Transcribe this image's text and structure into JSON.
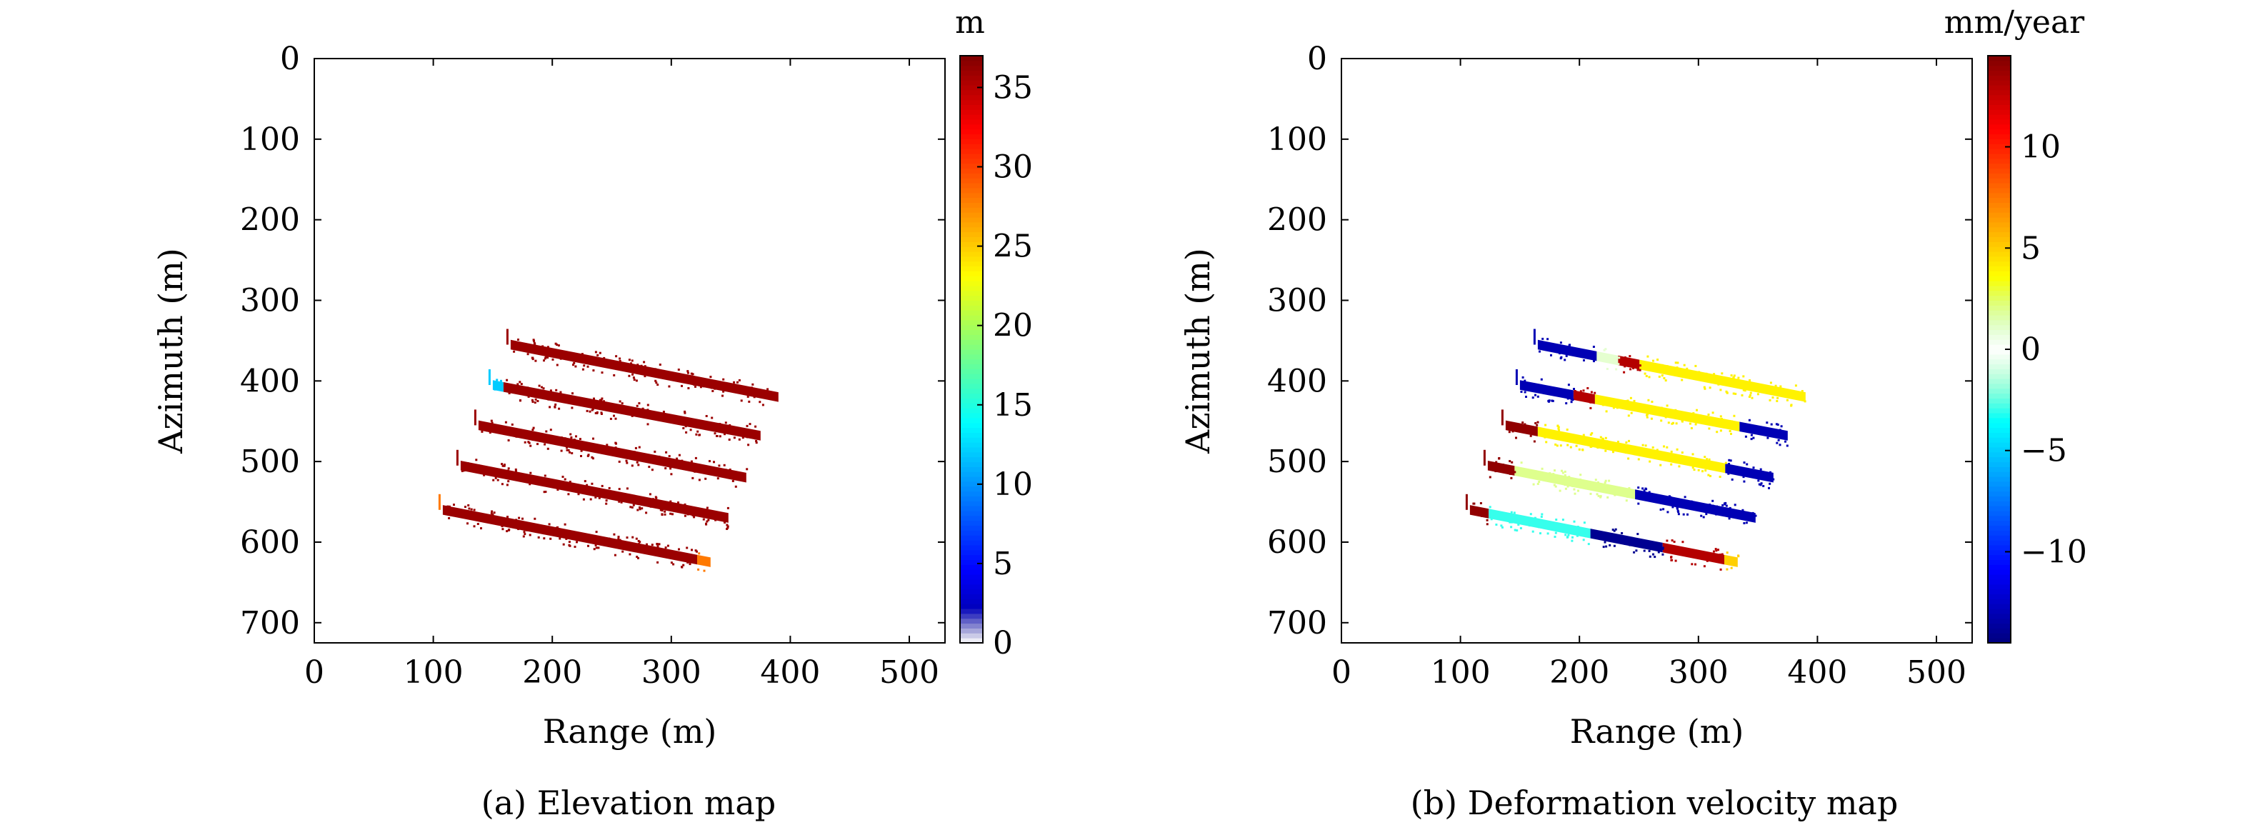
{
  "chart_data": [
    {
      "type": "heatmap",
      "caption": "(a) Elevation map",
      "xlabel": "Range (m)",
      "ylabel": "Azimuth (m)",
      "xlim": [
        0,
        530
      ],
      "ylim": [
        0,
        725
      ],
      "y_axis_inverted": true,
      "x_ticks": [
        0,
        100,
        200,
        300,
        400,
        500
      ],
      "y_ticks": [
        0,
        100,
        200,
        300,
        400,
        500,
        600,
        700
      ],
      "grid": false,
      "colorbar": {
        "unit": "m",
        "min": 0,
        "max": 37,
        "ticks": [
          0,
          5,
          10,
          15,
          20,
          25,
          30,
          35
        ],
        "colormap": "jet (white at minimum)"
      },
      "strips": [
        {
          "x1": 165,
          "y1": 355,
          "x2": 390,
          "y2": 420,
          "value": 36,
          "segments": []
        },
        {
          "x1": 150,
          "y1": 405,
          "x2": 375,
          "y2": 468,
          "value": 36,
          "segments": [
            {
              "from": 0.0,
              "to": 0.04,
              "value": 12
            }
          ]
        },
        {
          "x1": 138,
          "y1": 455,
          "x2": 363,
          "y2": 520,
          "value": 36,
          "segments": []
        },
        {
          "x1": 123,
          "y1": 505,
          "x2": 348,
          "y2": 570,
          "value": 36,
          "segments": []
        },
        {
          "x1": 108,
          "y1": 560,
          "x2": 333,
          "y2": 625,
          "value": 36,
          "segments": [
            {
              "from": 0.95,
              "to": 1.0,
              "value": 28
            }
          ]
        }
      ]
    },
    {
      "type": "heatmap",
      "caption": "(b) Deformation velocity map",
      "xlabel": "Range (m)",
      "ylabel": "Azimuth (m)",
      "xlim": [
        0,
        530
      ],
      "ylim": [
        0,
        725
      ],
      "y_axis_inverted": true,
      "x_ticks": [
        0,
        100,
        200,
        300,
        400,
        500
      ],
      "y_ticks": [
        0,
        100,
        200,
        300,
        400,
        500,
        600,
        700
      ],
      "grid": false,
      "colorbar": {
        "unit": "mm/year",
        "min": -14.5,
        "max": 14.5,
        "ticks": [
          -10,
          -5,
          0,
          5,
          10
        ],
        "colormap": "jet (white at zero)"
      },
      "strips": [
        {
          "x1": 165,
          "y1": 355,
          "x2": 390,
          "y2": 420,
          "value": 3,
          "segments": [
            {
              "from": 0.0,
              "to": 0.22,
              "value": -13
            },
            {
              "from": 0.22,
              "to": 0.3,
              "value": 1
            },
            {
              "from": 0.3,
              "to": 0.38,
              "value": 13
            },
            {
              "from": 0.38,
              "to": 1.0,
              "value": 4
            }
          ]
        },
        {
          "x1": 150,
          "y1": 405,
          "x2": 375,
          "y2": 468,
          "value": 4,
          "segments": [
            {
              "from": 0.0,
              "to": 0.2,
              "value": -13
            },
            {
              "from": 0.2,
              "to": 0.28,
              "value": 13
            },
            {
              "from": 0.28,
              "to": 0.82,
              "value": 4
            },
            {
              "from": 0.82,
              "to": 1.0,
              "value": -13
            }
          ]
        },
        {
          "x1": 138,
          "y1": 455,
          "x2": 363,
          "y2": 520,
          "value": 4,
          "segments": [
            {
              "from": 0.0,
              "to": 0.12,
              "value": 14
            },
            {
              "from": 0.12,
              "to": 0.82,
              "value": 4
            },
            {
              "from": 0.82,
              "to": 1.0,
              "value": -13
            }
          ]
        },
        {
          "x1": 123,
          "y1": 505,
          "x2": 348,
          "y2": 570,
          "value": 2,
          "segments": [
            {
              "from": 0.0,
              "to": 0.1,
              "value": 14
            },
            {
              "from": 0.1,
              "to": 0.55,
              "value": 2
            },
            {
              "from": 0.55,
              "to": 1.0,
              "value": -13
            }
          ]
        },
        {
          "x1": 108,
          "y1": 560,
          "x2": 333,
          "y2": 625,
          "value": -2,
          "segments": [
            {
              "from": 0.0,
              "to": 0.07,
              "value": 14
            },
            {
              "from": 0.07,
              "to": 0.45,
              "value": -3
            },
            {
              "from": 0.45,
              "to": 0.72,
              "value": -14
            },
            {
              "from": 0.72,
              "to": 0.95,
              "value": 13
            },
            {
              "from": 0.95,
              "to": 1.0,
              "value": 5
            }
          ]
        }
      ]
    }
  ]
}
